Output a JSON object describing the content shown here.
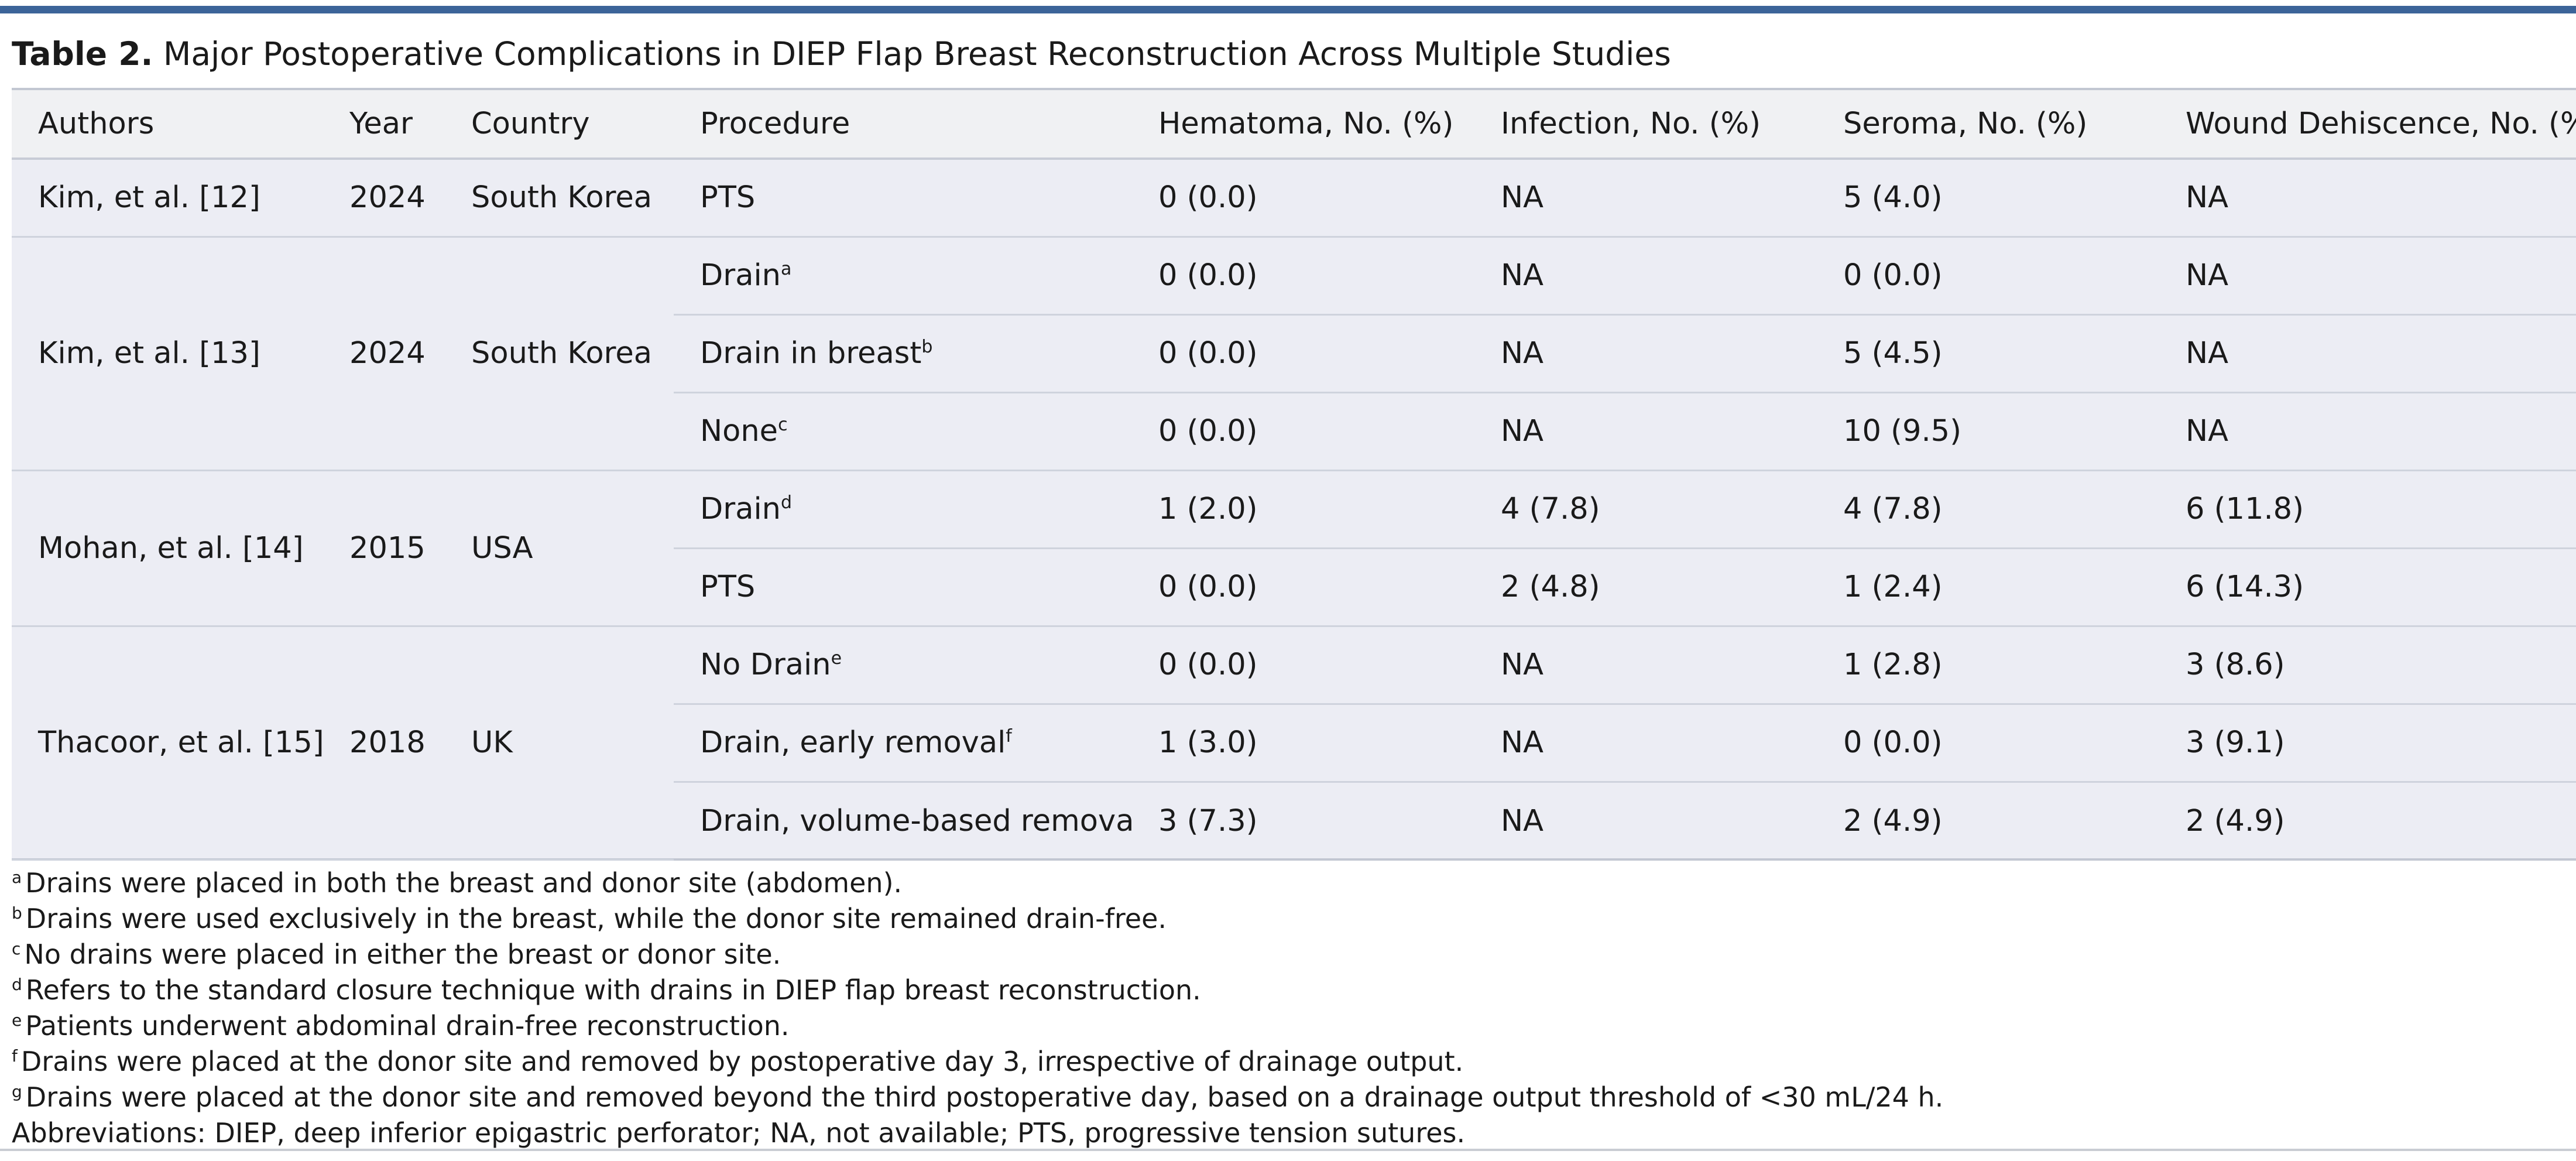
{
  "caption": {
    "label": "Table 2.",
    "title": " Major Postoperative Complications in DIEP Flap Breast Reconstruction Across Multiple Studies"
  },
  "columns": [
    "Authors",
    "Year",
    "Country",
    "Procedure",
    "Hematoma, No. (%)",
    "Infection, No. (%)",
    "Seroma, No. (%)",
    "Wound Dehiscence, No. (%)"
  ],
  "studies": [
    {
      "author": "Kim, et al. [12]",
      "year": "2024",
      "country": "South Korea",
      "rows": [
        {
          "procedure": "PTS",
          "sup": "",
          "hematoma": "0 (0.0)",
          "infection": "NA",
          "seroma": "5 (4.0)",
          "dehiscence": "NA"
        }
      ]
    },
    {
      "author": "Kim, et al. [13]",
      "year": "2024",
      "country": "South Korea",
      "rows": [
        {
          "procedure": "Drain",
          "sup": "a",
          "hematoma": "0 (0.0)",
          "infection": "NA",
          "seroma": "0 (0.0)",
          "dehiscence": "NA"
        },
        {
          "procedure": "Drain in breast",
          "sup": "b",
          "hematoma": "0 (0.0)",
          "infection": "NA",
          "seroma": "5 (4.5)",
          "dehiscence": "NA"
        },
        {
          "procedure": "None",
          "sup": "c",
          "hematoma": "0 (0.0)",
          "infection": "NA",
          "seroma": "10 (9.5)",
          "dehiscence": "NA"
        }
      ]
    },
    {
      "author": "Mohan, et al. [14]",
      "year": "2015",
      "country": "USA",
      "rows": [
        {
          "procedure": "Drain",
          "sup": "d",
          "hematoma": "1 (2.0)",
          "infection": "4 (7.8)",
          "seroma": "4 (7.8)",
          "dehiscence": "6 (11.8)"
        },
        {
          "procedure": "PTS",
          "sup": "",
          "hematoma": "0 (0.0)",
          "infection": "2 (4.8)",
          "seroma": "1 (2.4)",
          "dehiscence": "6 (14.3)"
        }
      ]
    },
    {
      "author": "Thacoor, et al. [15]",
      "year": "2018",
      "country": "UK",
      "rows": [
        {
          "procedure": "No Drain",
          "sup": "e",
          "hematoma": "0 (0.0)",
          "infection": "NA",
          "seroma": "1 (2.8)",
          "dehiscence": "3 (8.6)"
        },
        {
          "procedure": "Drain, early removal",
          "sup": "f",
          "hematoma": "1 (3.0)",
          "infection": "NA",
          "seroma": "0 (0.0)",
          "dehiscence": "3 (9.1)"
        },
        {
          "procedure": "Drain, volume-based removal",
          "sup": "g",
          "hematoma": "3 (7.3)",
          "infection": "NA",
          "seroma": "2 (4.9)",
          "dehiscence": "2 (4.9)"
        }
      ]
    }
  ],
  "footnotes": [
    {
      "mark": "a",
      "text": "Drains were placed in both the breast and donor site (abdomen)."
    },
    {
      "mark": "b",
      "text": "Drains were used exclusively in the breast, while the donor site remained drain-free."
    },
    {
      "mark": "c",
      "text": "No drains were placed in either the breast or donor site."
    },
    {
      "mark": "d",
      "text": "Refers to the standard closure technique with drains in DIEP flap breast reconstruction."
    },
    {
      "mark": "e",
      "text": "Patients underwent abdominal drain-free reconstruction."
    },
    {
      "mark": "f",
      "text": "Drains were placed at the donor site and removed by postoperative day 3, irrespective of drainage output."
    },
    {
      "mark": "g",
      "text": "Drains were placed at the donor site and removed beyond the third postoperative day, based on a drainage output threshold of <30 mL/24 h."
    }
  ],
  "abbreviations": "Abbreviations:  DIEP, deep inferior epigastric perforator;  NA, not available; PTS, progressive tension sutures.",
  "colors": {
    "accent_rule": "#3c6499",
    "table_bg": "#ecedf4",
    "header_bg": "#f0f1f3"
  }
}
